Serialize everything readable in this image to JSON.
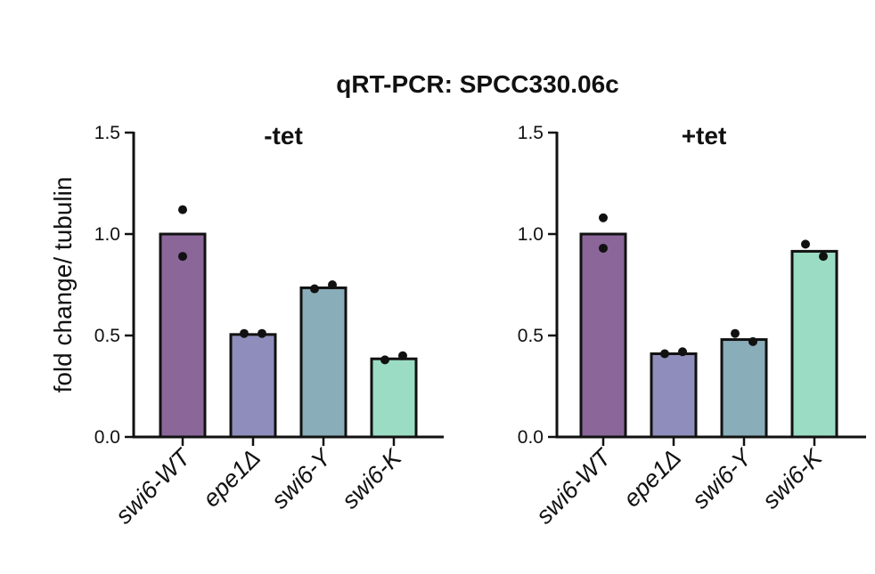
{
  "figure": {
    "title": "qRT-PCR: SPCC330.06c",
    "ylabel": "fold change/ tubulin"
  },
  "chart_data": [
    {
      "type": "bar",
      "title": "-tet",
      "ylabel": "fold change/ tubulin",
      "xlabel": "",
      "ylim": [
        0,
        1.5
      ],
      "yticks": [
        "0.0",
        "0.5",
        "1.0",
        "1.5"
      ],
      "categories": [
        "swi6-WT",
        "epe1Δ",
        "swi6-Y",
        "swi6-K"
      ],
      "values": [
        1.0,
        0.505,
        0.735,
        0.385
      ],
      "points": [
        [
          1.12,
          0.89
        ],
        [
          0.51,
          0.51
        ],
        [
          0.73,
          0.75
        ],
        [
          0.38,
          0.4
        ]
      ],
      "colors": [
        "#8a6699",
        "#8e8dbb",
        "#89adb9",
        "#9bdcc4"
      ],
      "grid": false,
      "legend": "none"
    },
    {
      "type": "bar",
      "title": "+tet",
      "ylabel": "",
      "xlabel": "",
      "ylim": [
        0,
        1.5
      ],
      "yticks": [
        "0.0",
        "0.5",
        "1.0",
        "1.5"
      ],
      "categories": [
        "swi6-WT",
        "epe1Δ",
        "swi6-Y",
        "swi6-K"
      ],
      "values": [
        1.0,
        0.41,
        0.48,
        0.915
      ],
      "points": [
        [
          1.08,
          0.93
        ],
        [
          0.41,
          0.42
        ],
        [
          0.51,
          0.47
        ],
        [
          0.95,
          0.89
        ]
      ],
      "colors": [
        "#8a6699",
        "#8e8dbb",
        "#89adb9",
        "#9bdcc4"
      ],
      "grid": false,
      "legend": "none"
    }
  ]
}
